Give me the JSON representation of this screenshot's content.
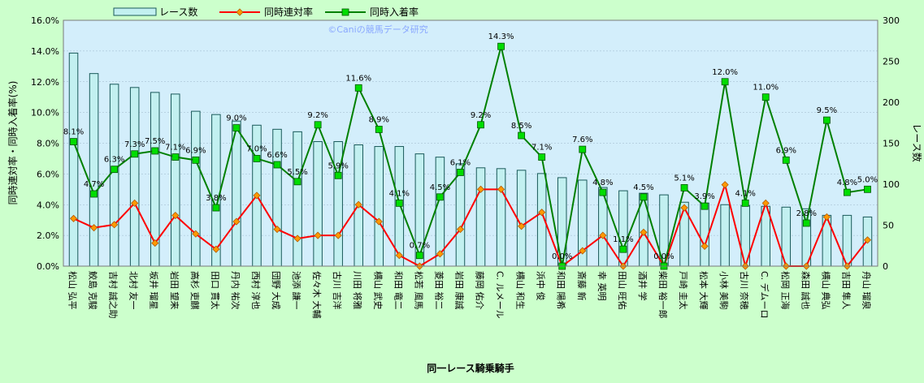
{
  "chart_data": {
    "type": "bar+line",
    "title": "",
    "watermark": "©Caniの競馬データ研究",
    "xlabel": "同一レース騎乗騎手",
    "ylabel_left": "同時連対率・同時入着率(%)",
    "ylabel_right": "レース数",
    "ylim_left": [
      0,
      16
    ],
    "ylim_right": [
      0,
      300
    ],
    "yticks_left": [
      "0.0%",
      "2.0%",
      "4.0%",
      "6.0%",
      "8.0%",
      "10.0%",
      "12.0%",
      "14.0%",
      "16.0%"
    ],
    "yticks_right": [
      "0",
      "50",
      "100",
      "150",
      "200",
      "250",
      "300"
    ],
    "grid": true,
    "legend_position": "top",
    "colors": {
      "background": "#ccffcc",
      "plot_area": "#d3eefb",
      "bar_fill": "#c2f0f0",
      "bar_edge": "#1a5a5a",
      "line1": "#ff0000",
      "marker1": "#ff9900",
      "line2": "#008000",
      "marker2": "#00dd00"
    },
    "categories": [
      "松山 弘平",
      "鮫島 克駿",
      "吉村 誠之助",
      "北村 友一",
      "坂井 瑠星",
      "岩田 望来",
      "高杉 吏麒",
      "田口 貫太",
      "丹内 祐次",
      "西村 淳也",
      "団野 大成",
      "池添 謙一",
      "佐々木 大輔",
      "古川 吉洋",
      "川田 将雅",
      "横山 武史",
      "和田 竜二",
      "松若 風馬",
      "菱田 裕二",
      "岩田 康誠",
      "藤岡 佑介",
      "C. ルメール",
      "横山 和生",
      "浜中 俊",
      "和田 陽希",
      "斎藤 新",
      "幸 英明",
      "田山 旺佑",
      "酒井 学",
      "柴田 裕一郎",
      "戸崎 圭太",
      "松本 大輝",
      "小林 美駒",
      "古川 奈穂",
      "C. デムーロ",
      "松岡 正海",
      "森田 誠也",
      "横山 典弘",
      "吉田 隼人",
      "舟山 瑠泉"
    ],
    "series": [
      {
        "name": "レース数",
        "type": "bar",
        "axis": "right",
        "values": [
          260,
          235,
          222,
          218,
          212,
          210,
          189,
          185,
          177,
          172,
          167,
          164,
          152,
          152,
          148,
          146,
          146,
          137,
          133,
          125,
          120,
          119,
          117,
          113,
          108,
          105,
          96,
          92,
          89,
          87,
          78,
          77,
          75,
          74,
          73,
          72,
          70,
          62,
          62,
          60
        ]
      },
      {
        "name": "同時連対率",
        "type": "line",
        "axis": "left",
        "values": [
          3.1,
          2.5,
          2.7,
          4.1,
          1.5,
          3.3,
          2.1,
          1.1,
          2.9,
          4.6,
          2.4,
          1.8,
          2.0,
          2.0,
          4.0,
          2.9,
          0.7,
          0.0,
          0.8,
          2.4,
          5.0,
          5.0,
          2.6,
          3.5,
          0.0,
          1.0,
          2.0,
          0.0,
          2.2,
          0.0,
          3.8,
          1.3,
          5.3,
          0.0,
          4.1,
          0.0,
          0.0,
          3.2,
          0.0,
          1.7
        ]
      },
      {
        "name": "同時入着率",
        "type": "line",
        "axis": "left",
        "values": [
          8.1,
          4.7,
          6.3,
          7.3,
          7.5,
          7.1,
          6.9,
          3.8,
          9.0,
          7.0,
          6.6,
          5.5,
          9.2,
          5.9,
          11.6,
          8.9,
          4.1,
          0.7,
          4.5,
          6.1,
          9.2,
          14.3,
          8.5,
          7.1,
          0.0,
          7.6,
          4.8,
          1.1,
          4.5,
          0.0,
          5.1,
          3.9,
          12.0,
          4.1,
          11.0,
          6.9,
          2.8,
          9.5,
          4.8,
          5.0
        ]
      }
    ],
    "data_labels": {
      "series": "同時入着率",
      "values": [
        "8.1%",
        "4.7%",
        "6.3%",
        "7.3%",
        "7.5%",
        "7.1%",
        "6.9%",
        "3.8%",
        "9.0%",
        "7.0%",
        "6.6%",
        "5.5%",
        "9.2%",
        "5.9%",
        "11.6%",
        "8.9%",
        "4.1%",
        "0.7%",
        "4.5%",
        "6.1%",
        "9.2%",
        "14.3%",
        "8.5%",
        "7.1%",
        "0.0%",
        "7.6%",
        "4.8%",
        "1.1%",
        "4.5%",
        "0.0%",
        "5.1%",
        "3.9%",
        "12.0%",
        "4.1%",
        "11.0%",
        "6.9%",
        "2.8%",
        "9.5%",
        "4.8%",
        "5.0%"
      ]
    }
  }
}
